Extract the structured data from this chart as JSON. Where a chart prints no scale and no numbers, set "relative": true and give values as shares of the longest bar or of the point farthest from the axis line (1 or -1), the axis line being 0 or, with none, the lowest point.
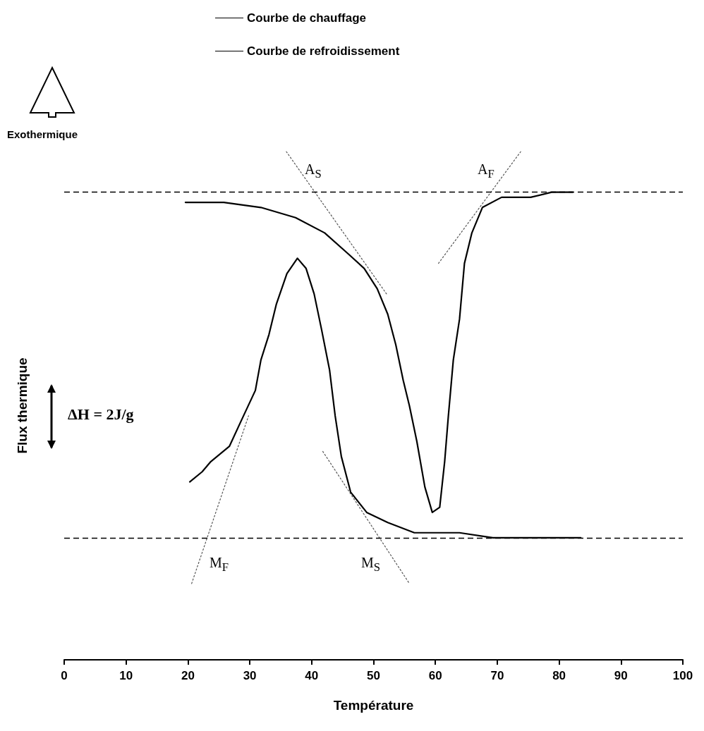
{
  "chart_data": {
    "type": "line",
    "relative": true,
    "xlabel": "Température",
    "ylabel": "Flux thermique",
    "xlim": [
      0,
      100
    ],
    "xticks": [
      0,
      10,
      20,
      30,
      40,
      50,
      60,
      70,
      80,
      90,
      100
    ],
    "legend": "top",
    "grid": false,
    "marker": "none",
    "line_style": "solid",
    "series": [
      {
        "name": "Courbe de chauffage",
        "color": "#000000",
        "x": [
          19.6,
          25.8,
          31.8,
          37.4,
          42.1,
          45.8,
          48.5,
          50.6,
          52.3,
          53.6,
          54.8,
          55.8,
          57.0,
          58.3,
          59.5,
          60.7,
          61.5,
          62.1,
          62.9,
          63.9,
          64.7,
          65.9,
          67.6,
          70.7,
          75.4,
          78.8,
          82.2
        ],
        "values": [
          0.9,
          0.9,
          0.89,
          0.87,
          0.84,
          0.8,
          0.77,
          0.73,
          0.68,
          0.62,
          0.55,
          0.5,
          0.43,
          0.34,
          0.29,
          0.3,
          0.39,
          0.48,
          0.59,
          0.67,
          0.78,
          0.84,
          0.89,
          0.91,
          0.91,
          0.92,
          0.92
        ]
      },
      {
        "name": "Courbe de refroidissement",
        "color": "#000000",
        "x": [
          20.3,
          22.3,
          23.7,
          26.7,
          28.6,
          30.9,
          31.8,
          33.1,
          34.3,
          36.0,
          37.7,
          39.1,
          40.4,
          41.6,
          42.9,
          43.8,
          44.8,
          46.3,
          48.9,
          52.3,
          56.6,
          63.9,
          69.3,
          83.5
        ],
        "values": [
          0.35,
          0.37,
          0.39,
          0.42,
          0.47,
          0.53,
          0.59,
          0.64,
          0.7,
          0.76,
          0.79,
          0.77,
          0.72,
          0.65,
          0.57,
          0.48,
          0.4,
          0.33,
          0.29,
          0.27,
          0.25,
          0.25,
          0.24,
          0.24
        ]
      },
      {
        "type": "line",
        "color": "#555555",
        "line_style": "dotted",
        "x": [
          35.9,
          52.1
        ],
        "values": [
          1.0,
          0.72
        ]
      },
      {
        "type": "line",
        "color": "#555555",
        "line_style": "dotted",
        "x": [
          60.5,
          73.8
        ],
        "values": [
          0.78,
          1.0
        ]
      },
      {
        "type": "line",
        "color": "#555555",
        "line_style": "dotted",
        "x": [
          20.6,
          29.8
        ],
        "values": [
          0.15,
          0.48
        ]
      },
      {
        "type": "line",
        "color": "#555555",
        "line_style": "dotted",
        "x": [
          41.8,
          55.8
        ],
        "values": [
          0.41,
          0.15
        ]
      }
    ],
    "ref_lines": [
      {
        "axis": "y",
        "value": 0.92,
        "color": "#000000",
        "line_style": "dashed"
      },
      {
        "axis": "y",
        "value": 0.24,
        "color": "#000000",
        "line_style": "dashed"
      }
    ],
    "annotations": [
      "Exothermique",
      "ΔH = 2J/g",
      "A$_{S}$",
      "A$_{F}$",
      "M$_{F}$",
      "M$_{S}$"
    ]
  }
}
